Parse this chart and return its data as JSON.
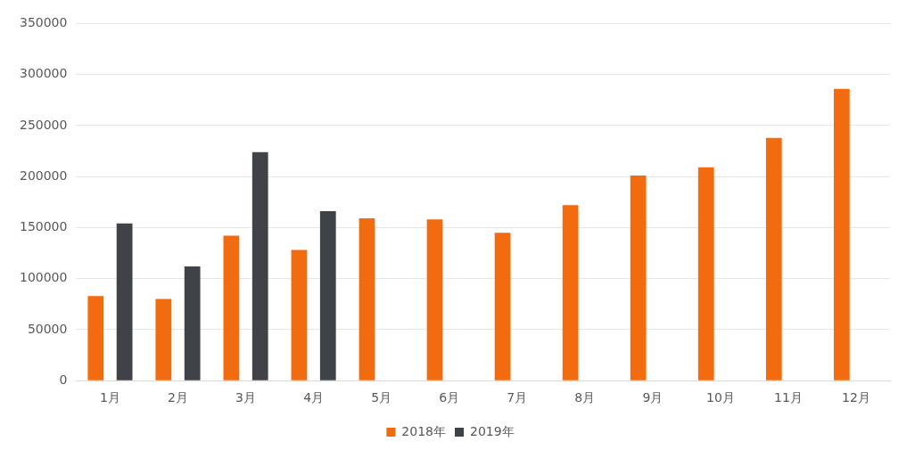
{
  "chart_data": {
    "type": "bar",
    "categories": [
      "1月",
      "2月",
      "3月",
      "4月",
      "5月",
      "6月",
      "7月",
      "8月",
      "9月",
      "10月",
      "11月",
      "12月"
    ],
    "series": [
      {
        "name": "2018年",
        "color": "#f26b0f",
        "values": [
          83000,
          80000,
          142000,
          128000,
          159000,
          158000,
          145000,
          172000,
          201000,
          209000,
          238000,
          286000
        ]
      },
      {
        "name": "2019年",
        "color": "#3f4247",
        "values": [
          154000,
          112000,
          224000,
          166000,
          null,
          null,
          null,
          null,
          null,
          null,
          null,
          null
        ]
      }
    ],
    "ylim": [
      0,
      350000
    ],
    "yticks": [
      0,
      50000,
      100000,
      150000,
      200000,
      250000,
      300000,
      350000
    ],
    "grid": "y",
    "legend": "bottom"
  }
}
